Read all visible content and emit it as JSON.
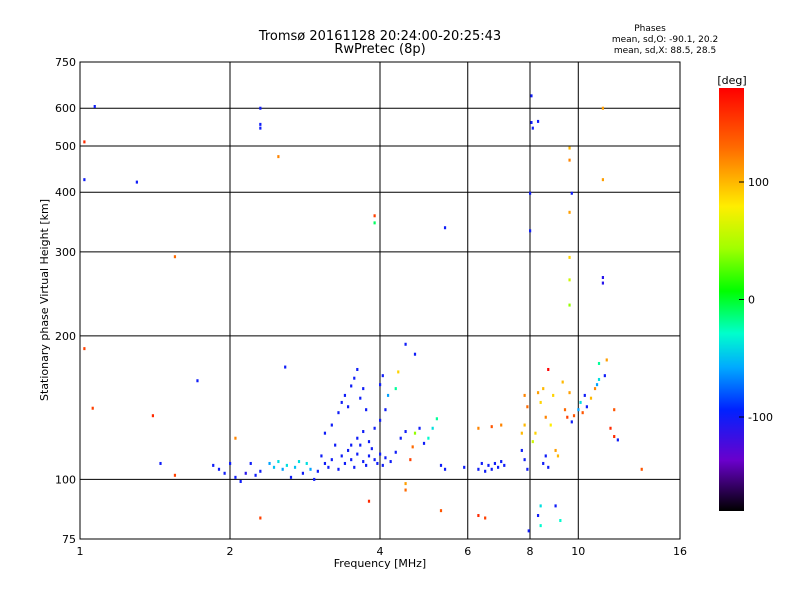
{
  "chart_data": {
    "type": "scatter",
    "title": "Tromsø 20161128 20:24:00-20:25:43",
    "subtitle": "RwPretec (8p)",
    "xlabel": "Frequency [MHz]",
    "ylabel": "Stationary phase Virtual Height [km]",
    "xscale": "log",
    "yscale": "log",
    "xlim": [
      1,
      16
    ],
    "ylim": [
      75,
      750
    ],
    "x_ticks": [
      1,
      2,
      4,
      6,
      8,
      10,
      16
    ],
    "y_ticks": [
      75,
      100,
      200,
      300,
      400,
      500,
      600,
      750
    ],
    "grid": true,
    "phase_box": {
      "title": "Phases",
      "line1": "mean, sd,O: -90.1, 20.2",
      "line2": "mean, sd,X: 88.5, 28.5"
    },
    "colorbar": {
      "label": "[deg]",
      "range": [
        -180,
        180
      ],
      "ticks": [
        100,
        0,
        -100
      ]
    },
    "points": [
      {
        "x": 1.07,
        "y": 605,
        "p": -100
      },
      {
        "x": 1.02,
        "y": 425,
        "p": -100
      },
      {
        "x": 1.02,
        "y": 510,
        "p": 160
      },
      {
        "x": 1.3,
        "y": 420,
        "p": -100
      },
      {
        "x": 1.55,
        "y": 293,
        "p": 130
      },
      {
        "x": 2.3,
        "y": 600,
        "p": -100
      },
      {
        "x": 2.3,
        "y": 555,
        "p": -100
      },
      {
        "x": 2.3,
        "y": 545,
        "p": -100
      },
      {
        "x": 2.5,
        "y": 475,
        "p": 120
      },
      {
        "x": 3.9,
        "y": 357,
        "p": 150
      },
      {
        "x": 3.9,
        "y": 345,
        "p": -10
      },
      {
        "x": 5.4,
        "y": 337,
        "p": -100
      },
      {
        "x": 8.05,
        "y": 637,
        "p": -100
      },
      {
        "x": 8.05,
        "y": 560,
        "p": -100
      },
      {
        "x": 8.3,
        "y": 563,
        "p": -100
      },
      {
        "x": 8.1,
        "y": 545,
        "p": -100
      },
      {
        "x": 8.0,
        "y": 398,
        "p": -100
      },
      {
        "x": 8.0,
        "y": 332,
        "p": -100
      },
      {
        "x": 9.6,
        "y": 495,
        "p": 100
      },
      {
        "x": 9.6,
        "y": 467,
        "p": 120
      },
      {
        "x": 9.6,
        "y": 363,
        "p": 110
      },
      {
        "x": 9.6,
        "y": 292,
        "p": 90
      },
      {
        "x": 9.6,
        "y": 262,
        "p": 60
      },
      {
        "x": 9.6,
        "y": 232,
        "p": 40
      },
      {
        "x": 9.7,
        "y": 398,
        "p": -100
      },
      {
        "x": 11.2,
        "y": 600,
        "p": 110
      },
      {
        "x": 11.2,
        "y": 425,
        "p": 110
      },
      {
        "x": 11.2,
        "y": 265,
        "p": -110
      },
      {
        "x": 11.2,
        "y": 258,
        "p": -110
      },
      {
        "x": 1.02,
        "y": 188,
        "p": 150
      },
      {
        "x": 1.06,
        "y": 141,
        "p": 150
      },
      {
        "x": 1.4,
        "y": 136,
        "p": 160
      },
      {
        "x": 1.55,
        "y": 102,
        "p": 150
      },
      {
        "x": 1.45,
        "y": 108,
        "p": -100
      },
      {
        "x": 1.72,
        "y": 161,
        "p": -100
      },
      {
        "x": 2.05,
        "y": 122,
        "p": 120
      },
      {
        "x": 2.58,
        "y": 172,
        "p": -100
      },
      {
        "x": 2.3,
        "y": 83,
        "p": 150
      },
      {
        "x": 1.85,
        "y": 107,
        "p": -100
      },
      {
        "x": 1.9,
        "y": 105,
        "p": -100
      },
      {
        "x": 1.95,
        "y": 103,
        "p": -100
      },
      {
        "x": 2.0,
        "y": 108,
        "p": -100
      },
      {
        "x": 2.05,
        "y": 101,
        "p": -100
      },
      {
        "x": 2.1,
        "y": 99,
        "p": -100
      },
      {
        "x": 2.15,
        "y": 103,
        "p": -110
      },
      {
        "x": 2.2,
        "y": 108,
        "p": -100
      },
      {
        "x": 2.25,
        "y": 102,
        "p": -100
      },
      {
        "x": 2.3,
        "y": 104,
        "p": -100
      },
      {
        "x": 2.4,
        "y": 108,
        "p": -60
      },
      {
        "x": 2.45,
        "y": 106,
        "p": -50
      },
      {
        "x": 2.5,
        "y": 109,
        "p": -40
      },
      {
        "x": 2.55,
        "y": 105,
        "p": -60
      },
      {
        "x": 2.6,
        "y": 107,
        "p": -40
      },
      {
        "x": 2.65,
        "y": 101,
        "p": -100
      },
      {
        "x": 2.7,
        "y": 106,
        "p": -50
      },
      {
        "x": 2.75,
        "y": 109,
        "p": -40
      },
      {
        "x": 2.8,
        "y": 103,
        "p": -100
      },
      {
        "x": 2.85,
        "y": 108,
        "p": -40
      },
      {
        "x": 2.9,
        "y": 105,
        "p": -60
      },
      {
        "x": 2.95,
        "y": 100,
        "p": -100
      },
      {
        "x": 3.0,
        "y": 104,
        "p": -100
      },
      {
        "x": 3.05,
        "y": 112,
        "p": -100
      },
      {
        "x": 3.1,
        "y": 108,
        "p": -100
      },
      {
        "x": 3.15,
        "y": 106,
        "p": -100
      },
      {
        "x": 3.2,
        "y": 110,
        "p": -100
      },
      {
        "x": 3.25,
        "y": 118,
        "p": -100
      },
      {
        "x": 3.3,
        "y": 105,
        "p": -100
      },
      {
        "x": 3.35,
        "y": 112,
        "p": -100
      },
      {
        "x": 3.4,
        "y": 108,
        "p": -100
      },
      {
        "x": 3.45,
        "y": 115,
        "p": -100
      },
      {
        "x": 3.5,
        "y": 110,
        "p": -100
      },
      {
        "x": 3.55,
        "y": 106,
        "p": -100
      },
      {
        "x": 3.6,
        "y": 113,
        "p": -100
      },
      {
        "x": 3.65,
        "y": 118,
        "p": -100
      },
      {
        "x": 3.7,
        "y": 109,
        "p": -100
      },
      {
        "x": 3.75,
        "y": 107,
        "p": -100
      },
      {
        "x": 3.8,
        "y": 112,
        "p": -100
      },
      {
        "x": 3.85,
        "y": 116,
        "p": -100
      },
      {
        "x": 3.9,
        "y": 110,
        "p": -100
      },
      {
        "x": 3.95,
        "y": 108,
        "p": -100
      },
      {
        "x": 4.0,
        "y": 113,
        "p": -100
      },
      {
        "x": 4.05,
        "y": 107,
        "p": -100
      },
      {
        "x": 4.1,
        "y": 111,
        "p": -100
      },
      {
        "x": 4.2,
        "y": 109,
        "p": -100
      },
      {
        "x": 4.3,
        "y": 114,
        "p": -100
      },
      {
        "x": 3.1,
        "y": 125,
        "p": -100
      },
      {
        "x": 3.2,
        "y": 130,
        "p": -100
      },
      {
        "x": 3.3,
        "y": 138,
        "p": -100
      },
      {
        "x": 3.35,
        "y": 145,
        "p": -100
      },
      {
        "x": 3.4,
        "y": 150,
        "p": -100
      },
      {
        "x": 3.45,
        "y": 142,
        "p": -100
      },
      {
        "x": 3.5,
        "y": 157,
        "p": -100
      },
      {
        "x": 3.55,
        "y": 163,
        "p": -100
      },
      {
        "x": 3.6,
        "y": 170,
        "p": -100
      },
      {
        "x": 3.65,
        "y": 148,
        "p": -100
      },
      {
        "x": 3.7,
        "y": 155,
        "p": -100
      },
      {
        "x": 3.75,
        "y": 140,
        "p": -100
      },
      {
        "x": 3.5,
        "y": 118,
        "p": -100
      },
      {
        "x": 3.6,
        "y": 122,
        "p": -100
      },
      {
        "x": 3.7,
        "y": 126,
        "p": -100
      },
      {
        "x": 3.8,
        "y": 120,
        "p": -100
      },
      {
        "x": 3.9,
        "y": 128,
        "p": -100
      },
      {
        "x": 4.0,
        "y": 133,
        "p": -100
      },
      {
        "x": 4.1,
        "y": 140,
        "p": -100
      },
      {
        "x": 4.0,
        "y": 158,
        "p": -100
      },
      {
        "x": 4.05,
        "y": 165,
        "p": -100
      },
      {
        "x": 4.15,
        "y": 150,
        "p": -60
      },
      {
        "x": 4.3,
        "y": 155,
        "p": -20
      },
      {
        "x": 4.35,
        "y": 168,
        "p": 90
      },
      {
        "x": 4.5,
        "y": 192,
        "p": -100
      },
      {
        "x": 4.4,
        "y": 122,
        "p": -100
      },
      {
        "x": 4.5,
        "y": 126,
        "p": -100
      },
      {
        "x": 4.6,
        "y": 110,
        "p": 150
      },
      {
        "x": 4.65,
        "y": 117,
        "p": 130
      },
      {
        "x": 4.7,
        "y": 125,
        "p": 40
      },
      {
        "x": 4.8,
        "y": 128,
        "p": -100
      },
      {
        "x": 4.9,
        "y": 119,
        "p": -100
      },
      {
        "x": 5.0,
        "y": 122,
        "p": -30
      },
      {
        "x": 5.1,
        "y": 128,
        "p": -40
      },
      {
        "x": 5.2,
        "y": 134,
        "p": -20
      },
      {
        "x": 5.3,
        "y": 107,
        "p": -100
      },
      {
        "x": 5.4,
        "y": 105,
        "p": -100
      },
      {
        "x": 4.5,
        "y": 98,
        "p": 110
      },
      {
        "x": 4.5,
        "y": 95,
        "p": 130
      },
      {
        "x": 3.8,
        "y": 90,
        "p": 160
      },
      {
        "x": 5.3,
        "y": 86,
        "p": 140
      },
      {
        "x": 4.7,
        "y": 183,
        "p": -100
      },
      {
        "x": 5.9,
        "y": 106,
        "p": -100
      },
      {
        "x": 6.3,
        "y": 105,
        "p": -100
      },
      {
        "x": 6.4,
        "y": 108,
        "p": -100
      },
      {
        "x": 6.5,
        "y": 104,
        "p": -100
      },
      {
        "x": 6.6,
        "y": 107,
        "p": -100
      },
      {
        "x": 6.7,
        "y": 105,
        "p": -100
      },
      {
        "x": 6.8,
        "y": 108,
        "p": -100
      },
      {
        "x": 6.9,
        "y": 106,
        "p": -100
      },
      {
        "x": 7.0,
        "y": 109,
        "p": -100
      },
      {
        "x": 7.1,
        "y": 107,
        "p": -100
      },
      {
        "x": 6.3,
        "y": 128,
        "p": 120
      },
      {
        "x": 6.7,
        "y": 129,
        "p": 140
      },
      {
        "x": 7.0,
        "y": 130,
        "p": 120
      },
      {
        "x": 6.3,
        "y": 84,
        "p": 160
      },
      {
        "x": 6.5,
        "y": 83,
        "p": 150
      },
      {
        "x": 7.7,
        "y": 125,
        "p": 100
      },
      {
        "x": 7.8,
        "y": 130,
        "p": 100
      },
      {
        "x": 7.9,
        "y": 142,
        "p": 130
      },
      {
        "x": 7.8,
        "y": 150,
        "p": 120
      },
      {
        "x": 7.7,
        "y": 115,
        "p": -100
      },
      {
        "x": 7.8,
        "y": 110,
        "p": -100
      },
      {
        "x": 7.9,
        "y": 105,
        "p": -100
      },
      {
        "x": 7.95,
        "y": 78,
        "p": -100
      },
      {
        "x": 8.1,
        "y": 120,
        "p": 60
      },
      {
        "x": 8.2,
        "y": 125,
        "p": 90
      },
      {
        "x": 8.3,
        "y": 152,
        "p": 110
      },
      {
        "x": 8.4,
        "y": 145,
        "p": 90
      },
      {
        "x": 8.5,
        "y": 155,
        "p": 100
      },
      {
        "x": 8.6,
        "y": 135,
        "p": 120
      },
      {
        "x": 8.7,
        "y": 170,
        "p": 180
      },
      {
        "x": 8.8,
        "y": 130,
        "p": 80
      },
      {
        "x": 8.9,
        "y": 150,
        "p": 90
      },
      {
        "x": 9.0,
        "y": 115,
        "p": 110
      },
      {
        "x": 9.1,
        "y": 112,
        "p": 100
      },
      {
        "x": 8.5,
        "y": 108,
        "p": -100
      },
      {
        "x": 8.6,
        "y": 112,
        "p": -100
      },
      {
        "x": 8.7,
        "y": 106,
        "p": -100
      },
      {
        "x": 8.4,
        "y": 88,
        "p": -40
      },
      {
        "x": 8.4,
        "y": 80,
        "p": -30
      },
      {
        "x": 8.3,
        "y": 84,
        "p": -100
      },
      {
        "x": 9.0,
        "y": 88,
        "p": -100
      },
      {
        "x": 9.2,
        "y": 82,
        "p": -30
      },
      {
        "x": 9.4,
        "y": 140,
        "p": 130
      },
      {
        "x": 9.5,
        "y": 135,
        "p": 150
      },
      {
        "x": 9.6,
        "y": 152,
        "p": 110
      },
      {
        "x": 9.7,
        "y": 132,
        "p": -100
      },
      {
        "x": 9.8,
        "y": 136,
        "p": 140
      },
      {
        "x": 10.0,
        "y": 140,
        "p": -60
      },
      {
        "x": 10.1,
        "y": 145,
        "p": -40
      },
      {
        "x": 10.2,
        "y": 138,
        "p": 140
      },
      {
        "x": 10.3,
        "y": 150,
        "p": -100
      },
      {
        "x": 10.4,
        "y": 142,
        "p": -100
      },
      {
        "x": 10.6,
        "y": 148,
        "p": 100
      },
      {
        "x": 10.8,
        "y": 155,
        "p": 120
      },
      {
        "x": 10.9,
        "y": 158,
        "p": -60
      },
      {
        "x": 11.0,
        "y": 162,
        "p": -40
      },
      {
        "x": 11.0,
        "y": 175,
        "p": -20
      },
      {
        "x": 11.3,
        "y": 165,
        "p": -100
      },
      {
        "x": 11.4,
        "y": 178,
        "p": 110
      },
      {
        "x": 11.6,
        "y": 128,
        "p": 160
      },
      {
        "x": 11.8,
        "y": 123,
        "p": 160
      },
      {
        "x": 11.8,
        "y": 140,
        "p": 140
      },
      {
        "x": 12.0,
        "y": 121,
        "p": -100
      },
      {
        "x": 13.4,
        "y": 105,
        "p": 140
      },
      {
        "x": 9.3,
        "y": 160,
        "p": 100
      }
    ]
  }
}
